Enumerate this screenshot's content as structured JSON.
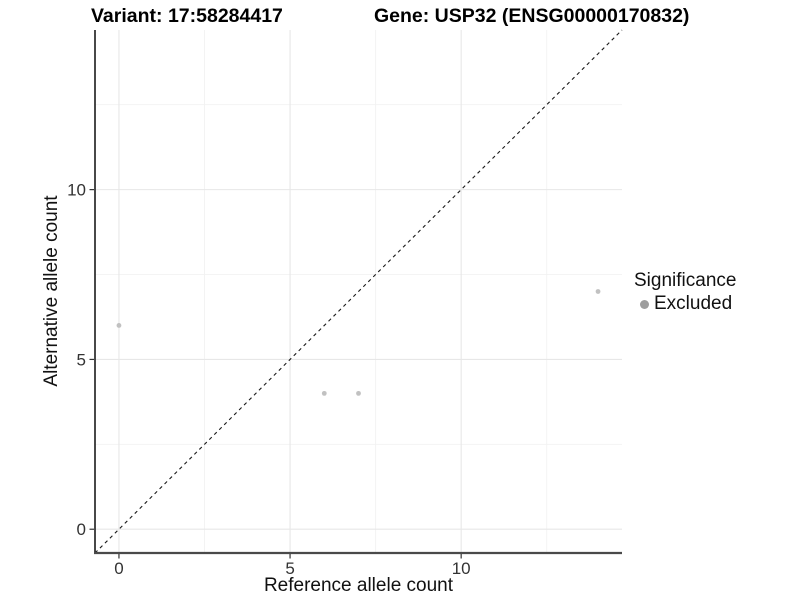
{
  "chart_data": {
    "type": "scatter",
    "titles": {
      "left": "Variant: 17:58284417",
      "right": "Gene: USP32 (ENSG00000170832)"
    },
    "xlabel": "Reference allele count",
    "ylabel": "Alternative allele count",
    "xlim": [
      -0.7,
      14.7
    ],
    "ylim": [
      -0.7,
      14.7
    ],
    "xticks": [
      0,
      5,
      10
    ],
    "yticks": [
      0,
      5,
      10
    ],
    "xminor": [
      2.5,
      7.5,
      12.5
    ],
    "yminor": [
      2.5,
      7.5,
      12.5
    ],
    "grid": "major+minor",
    "identity_line": {
      "slope": 1,
      "intercept": 0,
      "style": "dashed",
      "color": "#1a1a1a"
    },
    "series": [
      {
        "name": "Excluded",
        "color": "#c1c1c1",
        "points": [
          {
            "x": 0,
            "y": 6
          },
          {
            "x": 6,
            "y": 4
          },
          {
            "x": 7,
            "y": 4
          },
          {
            "x": 14,
            "y": 7
          }
        ]
      }
    ],
    "legend": {
      "title": "Significance",
      "position": "right",
      "items": [
        {
          "label": "Excluded",
          "color": "#9e9e9e"
        }
      ]
    },
    "colors": {
      "grid_major": "#e7e7e7",
      "grid_minor": "#f2f2f2",
      "axis_line_left": "#1a1a1a",
      "axis_line_bottom": "#4a4a4a",
      "tick": "#333333",
      "tick_label": "#333333",
      "point": "#c1c1c1"
    }
  }
}
